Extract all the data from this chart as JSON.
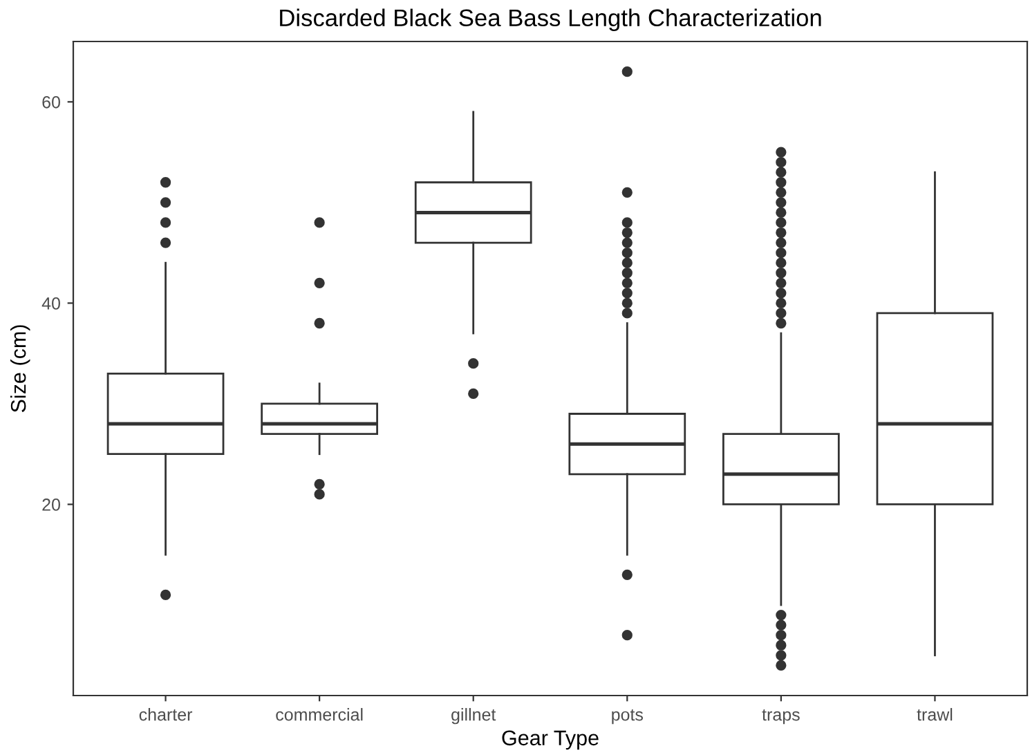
{
  "chart_data": {
    "type": "box",
    "title": "Discarded Black Sea Bass Length Characterization",
    "xlabel": "Gear Type",
    "ylabel": "Size (cm)",
    "categories": [
      "charter",
      "commercial",
      "gillnet",
      "pots",
      "traps",
      "trawl"
    ],
    "ylim": [
      1.0,
      66.0
    ],
    "yticks": [
      20,
      40,
      60
    ],
    "grid": false,
    "legend": false,
    "series": [
      {
        "color": "#333333",
        "boxes": [
          {
            "low": 15,
            "q1": 25,
            "median": 28,
            "q3": 33,
            "high": 44,
            "outliers": [
              52,
              50,
              48,
              46,
              11
            ]
          },
          {
            "low": 25,
            "q1": 27,
            "median": 28,
            "q3": 30,
            "high": 32,
            "outliers": [
              48,
              42,
              38,
              22,
              21
            ]
          },
          {
            "low": 37,
            "q1": 46,
            "median": 49,
            "q3": 52,
            "high": 59,
            "outliers": [
              34,
              31
            ]
          },
          {
            "low": 15,
            "q1": 23,
            "median": 26,
            "q3": 29,
            "high": 38,
            "outliers": [
              63,
              51,
              48,
              47,
              46,
              45,
              44,
              43,
              42,
              41,
              40,
              39,
              13,
              7
            ]
          },
          {
            "low": 10,
            "q1": 20,
            "median": 23,
            "q3": 27,
            "high": 37,
            "outliers": [
              55,
              54,
              53,
              52,
              51,
              50,
              49,
              48,
              47,
              46,
              45,
              44,
              43,
              42,
              41,
              40,
              39,
              38,
              9,
              8,
              7,
              6,
              5,
              4
            ]
          },
          {
            "low": 5,
            "q1": 20,
            "median": 28,
            "q3": 39,
            "high": 53
          }
        ]
      }
    ]
  }
}
